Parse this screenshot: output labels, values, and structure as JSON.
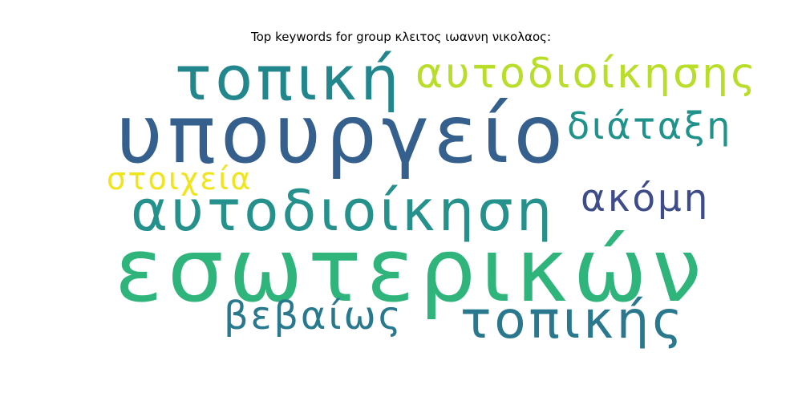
{
  "title": "Top keywords for group κλειτος ιωαννη νικολαος:",
  "words": {
    "topiki": {
      "text": "τοπική",
      "color": "#22868d"
    },
    "autodioikisis": {
      "text": "αυτοδιοίκησης",
      "color": "#b8de29"
    },
    "ypourgeio": {
      "text": "υπουργείο",
      "color": "#35608d"
    },
    "diataxi": {
      "text": "διάταξη",
      "color": "#20928c"
    },
    "stoixeia": {
      "text": "στοιχεία",
      "color": "#f0e51c"
    },
    "akomi": {
      "text": "ακόμη",
      "color": "#3e4c8a"
    },
    "autodioikisi": {
      "text": "αυτοδιοίκηση",
      "color": "#25918c"
    },
    "esoterikon": {
      "text": "εσωτερικών",
      "color": "#2fb57c"
    },
    "vevaios": {
      "text": "βεβαίως",
      "color": "#29798e"
    },
    "topikis": {
      "text": "τοπικής",
      "color": "#2a788e"
    }
  }
}
